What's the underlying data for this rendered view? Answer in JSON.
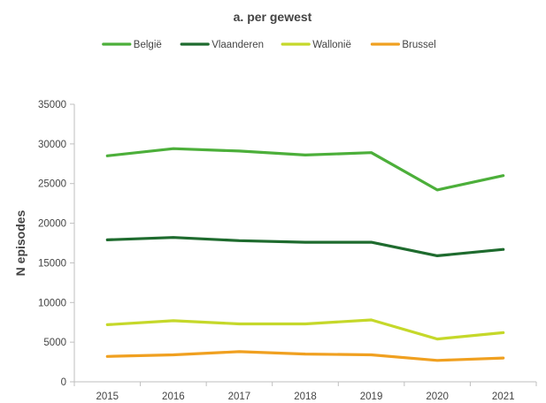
{
  "chart_data": {
    "type": "line",
    "title": "a. per gewest",
    "xlabel": "",
    "ylabel": "N episodes",
    "x": [
      "2015",
      "2016",
      "2017",
      "2018",
      "2019",
      "2020",
      "2021"
    ],
    "ylim": [
      0,
      35000
    ],
    "yticks": [
      0,
      5000,
      10000,
      15000,
      20000,
      25000,
      30000,
      35000
    ],
    "yticklabels": [
      "0",
      "5000",
      "10000",
      "15000",
      "20000",
      "25000",
      "30000",
      "35000"
    ],
    "grid": false,
    "legend_position": "top",
    "series": [
      {
        "name": "België",
        "color": "#4caf3a",
        "values": [
          28500,
          29400,
          29100,
          28600,
          28900,
          24200,
          26000
        ]
      },
      {
        "name": "Vlaanderen",
        "color": "#1e6b2e",
        "values": [
          17900,
          18200,
          17800,
          17600,
          17600,
          15900,
          16700
        ]
      },
      {
        "name": "Wallonië",
        "color": "#c5d82a",
        "values": [
          7200,
          7700,
          7300,
          7300,
          7800,
          5400,
          6200
        ]
      },
      {
        "name": "Brussel",
        "color": "#f0a020",
        "values": [
          3200,
          3400,
          3800,
          3500,
          3400,
          2700,
          3000
        ]
      }
    ]
  }
}
